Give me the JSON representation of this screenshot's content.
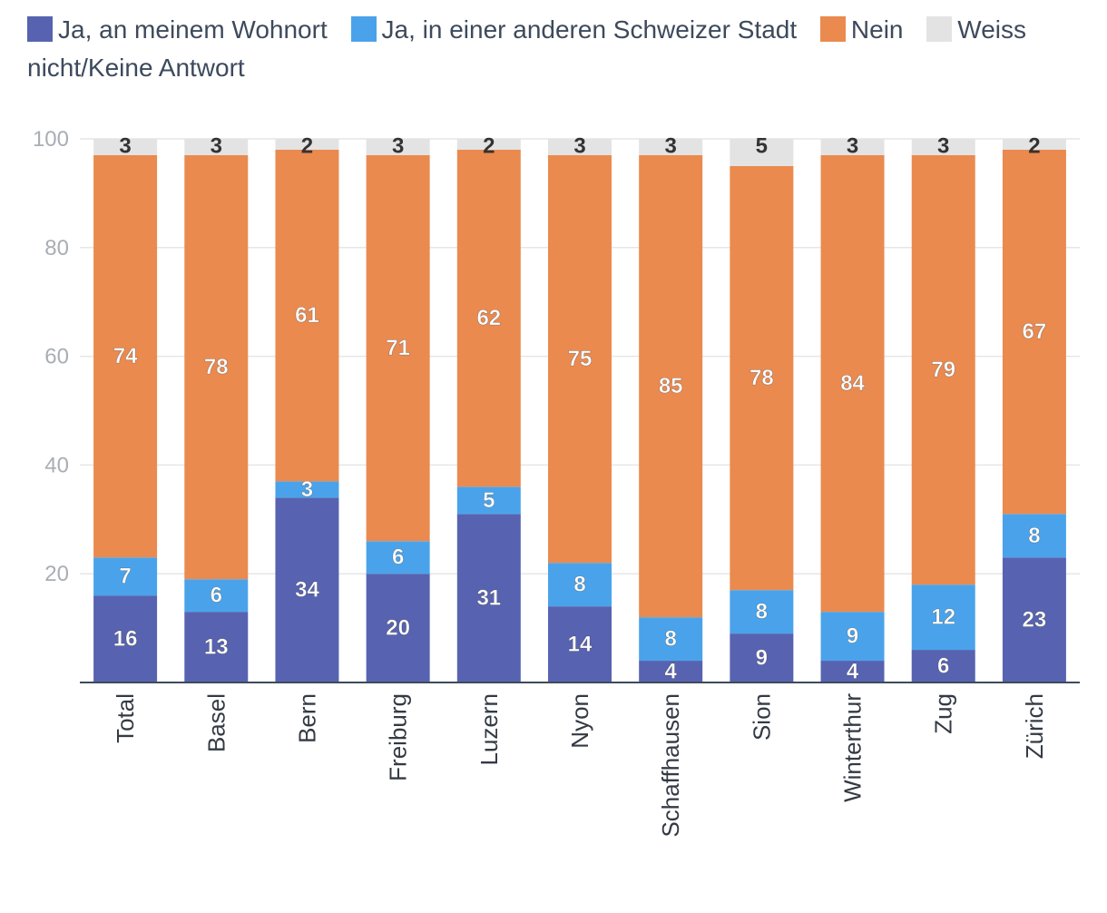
{
  "chart_data": {
    "type": "bar",
    "stacked": true,
    "categories": [
      "Total",
      "Basel",
      "Bern",
      "Freiburg",
      "Luzern",
      "Nyon",
      "Schaffhausen",
      "Sion",
      "Winterthur",
      "Zug",
      "Zürich"
    ],
    "series": [
      {
        "name": "Ja, an meinem Wohnort",
        "color": "#5763b0",
        "values": [
          16,
          13,
          34,
          20,
          31,
          14,
          4,
          9,
          4,
          6,
          23
        ]
      },
      {
        "name": "Ja, in einer anderen Schweizer Stadt",
        "color": "#4aa3ea",
        "values": [
          7,
          6,
          3,
          6,
          5,
          8,
          8,
          8,
          9,
          12,
          8
        ]
      },
      {
        "name": "Nein",
        "color": "#ea8a4f",
        "values": [
          74,
          78,
          61,
          71,
          62,
          75,
          85,
          78,
          84,
          79,
          67
        ]
      },
      {
        "name": "Weiss nicht/Keine Antwort",
        "color": "#e3e3e3",
        "values": [
          3,
          3,
          2,
          3,
          2,
          3,
          3,
          5,
          3,
          3,
          2
        ]
      }
    ],
    "ylim": [
      0,
      100
    ],
    "yticks": [
      20,
      40,
      60,
      80,
      100
    ],
    "grid": true,
    "legend": "top",
    "title": "",
    "xlabel": "",
    "ylabel": ""
  }
}
